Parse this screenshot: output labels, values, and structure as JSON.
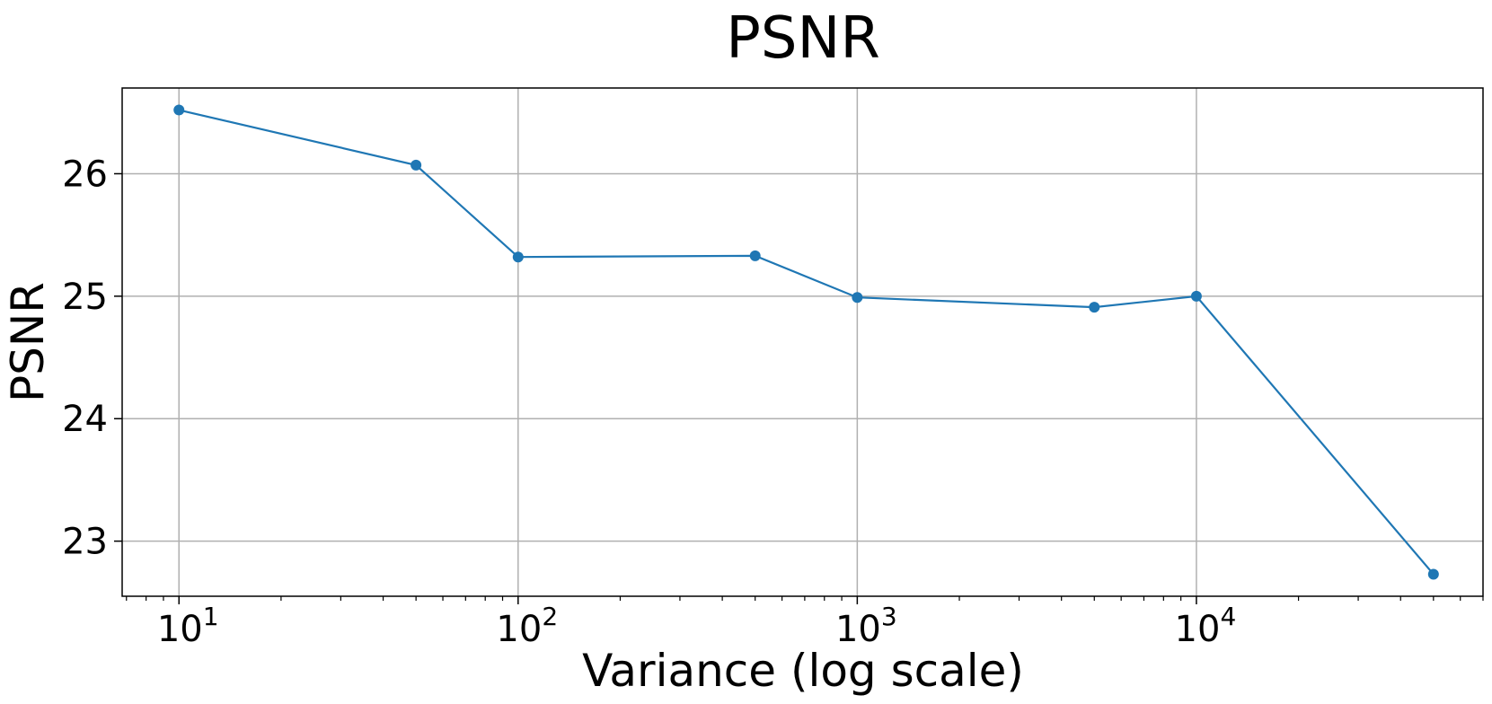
{
  "chart_data": {
    "type": "line",
    "title": "PSNR",
    "xlabel": "Variance (log scale)",
    "ylabel": "PSNR",
    "xscale": "log",
    "xlim": [
      6.8,
      70000
    ],
    "ylim": [
      22.55,
      26.7
    ],
    "grid": true,
    "x_ticks": [
      {
        "value": 10,
        "base": "10",
        "exp": "1"
      },
      {
        "value": 100,
        "base": "10",
        "exp": "2"
      },
      {
        "value": 1000,
        "base": "10",
        "exp": "3"
      },
      {
        "value": 10000,
        "base": "10",
        "exp": "4"
      }
    ],
    "y_ticks": [
      {
        "value": 23,
        "label": "23"
      },
      {
        "value": 24,
        "label": "24"
      },
      {
        "value": 25,
        "label": "25"
      },
      {
        "value": 26,
        "label": "26"
      }
    ],
    "series": [
      {
        "color": "#1f77b4",
        "x": [
          10,
          50,
          100,
          500,
          1000,
          5000,
          10000,
          50000
        ],
        "y": [
          26.52,
          26.07,
          25.32,
          25.33,
          24.99,
          24.91,
          25.0,
          22.73
        ]
      }
    ]
  }
}
